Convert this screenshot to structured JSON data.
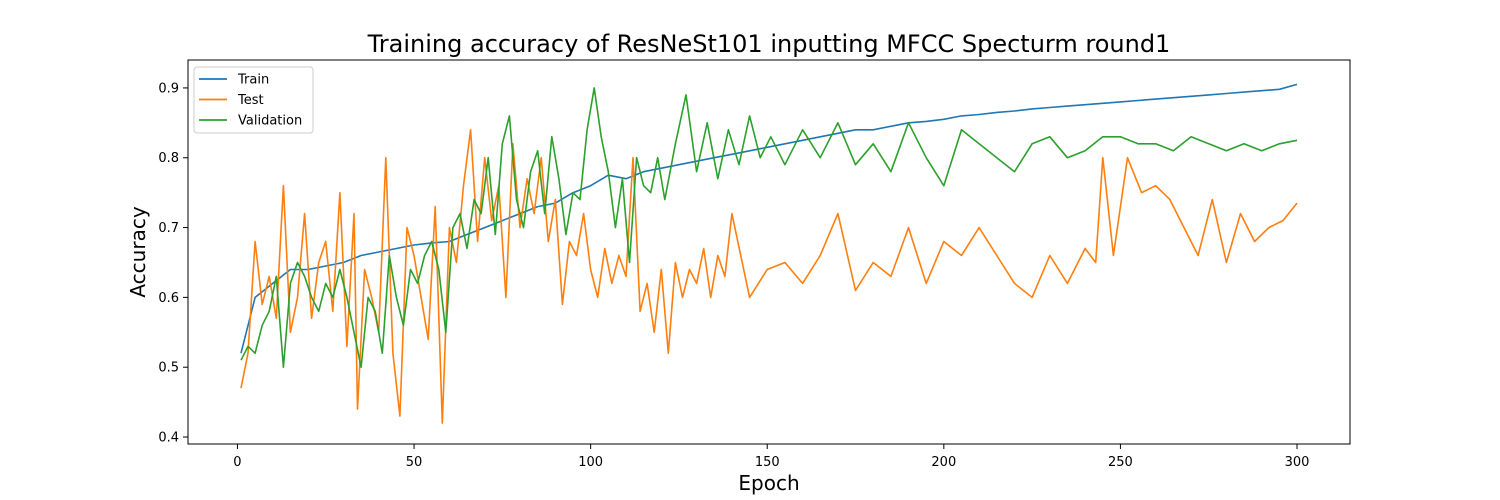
{
  "chart_data": {
    "type": "line",
    "title": "Training accuracy of ResNeSt101 inputting MFCC Specturm round1",
    "xlabel": "Epoch",
    "ylabel": "Accuracy",
    "xlim": [
      -14,
      315
    ],
    "ylim": [
      0.39,
      0.94
    ],
    "xticks": [
      0,
      50,
      100,
      150,
      200,
      250,
      300
    ],
    "yticks": [
      0.4,
      0.5,
      0.6,
      0.7,
      0.8,
      0.9
    ],
    "legend_position": "upper-left",
    "grid": false,
    "series": [
      {
        "name": "Train",
        "color": "#1f77b4",
        "x": [
          1,
          5,
          10,
          15,
          20,
          25,
          30,
          35,
          40,
          45,
          50,
          55,
          60,
          65,
          70,
          75,
          80,
          85,
          90,
          95,
          100,
          105,
          110,
          115,
          120,
          125,
          130,
          135,
          140,
          145,
          150,
          155,
          160,
          165,
          170,
          175,
          180,
          185,
          190,
          195,
          200,
          205,
          210,
          215,
          220,
          225,
          230,
          235,
          240,
          245,
          250,
          255,
          260,
          265,
          270,
          275,
          280,
          285,
          290,
          295,
          300
        ],
        "y": [
          0.52,
          0.6,
          0.62,
          0.64,
          0.64,
          0.645,
          0.65,
          0.66,
          0.665,
          0.67,
          0.675,
          0.678,
          0.68,
          0.69,
          0.7,
          0.71,
          0.72,
          0.73,
          0.735,
          0.75,
          0.76,
          0.775,
          0.77,
          0.78,
          0.785,
          0.79,
          0.795,
          0.8,
          0.805,
          0.81,
          0.815,
          0.82,
          0.825,
          0.83,
          0.835,
          0.84,
          0.84,
          0.845,
          0.85,
          0.852,
          0.855,
          0.86,
          0.862,
          0.865,
          0.867,
          0.87,
          0.872,
          0.874,
          0.876,
          0.878,
          0.88,
          0.882,
          0.884,
          0.886,
          0.888,
          0.89,
          0.892,
          0.894,
          0.896,
          0.898,
          0.905
        ]
      },
      {
        "name": "Test",
        "color": "#ff7f0e",
        "x": [
          1,
          3,
          5,
          7,
          9,
          11,
          13,
          15,
          17,
          19,
          21,
          23,
          25,
          27,
          29,
          31,
          33,
          34,
          36,
          38,
          40,
          42,
          44,
          46,
          48,
          50,
          52,
          54,
          56,
          58,
          60,
          62,
          64,
          66,
          68,
          70,
          72,
          74,
          76,
          78,
          80,
          82,
          84,
          86,
          88,
          90,
          92,
          94,
          96,
          98,
          100,
          102,
          104,
          106,
          108,
          110,
          112,
          114,
          116,
          118,
          120,
          122,
          124,
          126,
          128,
          130,
          132,
          134,
          136,
          138,
          140,
          145,
          150,
          155,
          160,
          165,
          170,
          175,
          180,
          185,
          190,
          195,
          200,
          205,
          210,
          215,
          220,
          225,
          230,
          235,
          240,
          243,
          245,
          248,
          252,
          256,
          260,
          264,
          268,
          272,
          276,
          280,
          284,
          288,
          292,
          296,
          300
        ],
        "y": [
          0.47,
          0.52,
          0.68,
          0.59,
          0.63,
          0.57,
          0.76,
          0.55,
          0.6,
          0.72,
          0.57,
          0.65,
          0.68,
          0.58,
          0.75,
          0.53,
          0.72,
          0.44,
          0.64,
          0.6,
          0.55,
          0.8,
          0.52,
          0.43,
          0.7,
          0.66,
          0.6,
          0.54,
          0.73,
          0.42,
          0.7,
          0.65,
          0.76,
          0.84,
          0.68,
          0.8,
          0.71,
          0.76,
          0.6,
          0.82,
          0.7,
          0.77,
          0.72,
          0.8,
          0.68,
          0.74,
          0.59,
          0.68,
          0.66,
          0.72,
          0.64,
          0.6,
          0.67,
          0.62,
          0.66,
          0.63,
          0.8,
          0.58,
          0.62,
          0.55,
          0.64,
          0.52,
          0.65,
          0.6,
          0.64,
          0.62,
          0.67,
          0.6,
          0.66,
          0.63,
          0.72,
          0.6,
          0.64,
          0.65,
          0.62,
          0.66,
          0.72,
          0.61,
          0.65,
          0.63,
          0.7,
          0.62,
          0.68,
          0.66,
          0.7,
          0.66,
          0.62,
          0.6,
          0.66,
          0.62,
          0.67,
          0.65,
          0.8,
          0.66,
          0.8,
          0.75,
          0.76,
          0.74,
          0.7,
          0.66,
          0.74,
          0.65,
          0.72,
          0.68,
          0.7,
          0.71,
          0.735
        ]
      },
      {
        "name": "Validation",
        "color": "#2ca02c",
        "x": [
          1,
          3,
          5,
          7,
          9,
          11,
          13,
          15,
          17,
          19,
          21,
          23,
          25,
          27,
          29,
          31,
          33,
          35,
          37,
          39,
          41,
          43,
          45,
          47,
          49,
          51,
          53,
          55,
          57,
          59,
          61,
          63,
          65,
          67,
          69,
          71,
          73,
          75,
          77,
          79,
          81,
          83,
          85,
          87,
          89,
          91,
          93,
          95,
          97,
          99,
          101,
          103,
          105,
          107,
          109,
          111,
          113,
          115,
          117,
          119,
          121,
          124,
          127,
          130,
          133,
          136,
          139,
          142,
          145,
          148,
          151,
          155,
          160,
          165,
          170,
          175,
          180,
          185,
          190,
          195,
          200,
          205,
          210,
          215,
          220,
          225,
          230,
          235,
          240,
          245,
          250,
          255,
          260,
          265,
          270,
          275,
          280,
          285,
          290,
          295,
          300
        ],
        "y": [
          0.51,
          0.53,
          0.52,
          0.56,
          0.58,
          0.63,
          0.5,
          0.62,
          0.65,
          0.63,
          0.6,
          0.58,
          0.62,
          0.6,
          0.64,
          0.6,
          0.55,
          0.5,
          0.6,
          0.58,
          0.52,
          0.66,
          0.6,
          0.56,
          0.64,
          0.62,
          0.66,
          0.68,
          0.64,
          0.55,
          0.7,
          0.72,
          0.67,
          0.74,
          0.72,
          0.8,
          0.69,
          0.82,
          0.86,
          0.74,
          0.7,
          0.78,
          0.81,
          0.72,
          0.83,
          0.77,
          0.69,
          0.75,
          0.74,
          0.84,
          0.9,
          0.83,
          0.78,
          0.7,
          0.77,
          0.65,
          0.8,
          0.76,
          0.75,
          0.8,
          0.74,
          0.82,
          0.89,
          0.78,
          0.85,
          0.77,
          0.84,
          0.79,
          0.86,
          0.8,
          0.83,
          0.79,
          0.84,
          0.8,
          0.85,
          0.79,
          0.82,
          0.78,
          0.85,
          0.8,
          0.76,
          0.84,
          0.82,
          0.8,
          0.78,
          0.82,
          0.83,
          0.8,
          0.81,
          0.83,
          0.83,
          0.82,
          0.82,
          0.81,
          0.83,
          0.82,
          0.81,
          0.82,
          0.81,
          0.82,
          0.825
        ]
      }
    ]
  }
}
